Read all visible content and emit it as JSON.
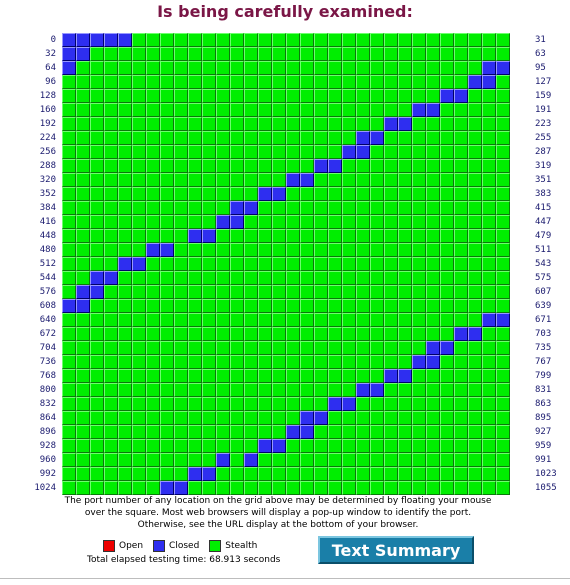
{
  "heading": "Is being carefully examined:",
  "grid": {
    "columns": 32,
    "rows": 33,
    "row_start_labels": [
      "0",
      "32",
      "64",
      "96",
      "128",
      "160",
      "192",
      "224",
      "256",
      "288",
      "320",
      "352",
      "384",
      "416",
      "448",
      "480",
      "512",
      "544",
      "576",
      "608",
      "640",
      "672",
      "704",
      "736",
      "768",
      "800",
      "832",
      "864",
      "896",
      "928",
      "960",
      "992",
      "1024"
    ],
    "row_end_labels": [
      "31",
      "63",
      "95",
      "127",
      "159",
      "191",
      "223",
      "255",
      "287",
      "319",
      "351",
      "383",
      "415",
      "447",
      "479",
      "511",
      "543",
      "575",
      "607",
      "639",
      "671",
      "703",
      "735",
      "767",
      "799",
      "831",
      "863",
      "895",
      "927",
      "959",
      "991",
      "1023",
      "1055"
    ],
    "closed_cells": [
      [
        0,
        0
      ],
      [
        0,
        1
      ],
      [
        0,
        2
      ],
      [
        0,
        3
      ],
      [
        0,
        4
      ],
      [
        1,
        0
      ],
      [
        1,
        1
      ],
      [
        2,
        0
      ],
      [
        2,
        30
      ],
      [
        2,
        31
      ],
      [
        3,
        29
      ],
      [
        3,
        30
      ],
      [
        4,
        27
      ],
      [
        4,
        28
      ],
      [
        5,
        25
      ],
      [
        5,
        26
      ],
      [
        6,
        23
      ],
      [
        6,
        24
      ],
      [
        7,
        21
      ],
      [
        7,
        22
      ],
      [
        8,
        20
      ],
      [
        8,
        21
      ],
      [
        9,
        18
      ],
      [
        9,
        19
      ],
      [
        10,
        16
      ],
      [
        10,
        17
      ],
      [
        11,
        14
      ],
      [
        11,
        15
      ],
      [
        12,
        12
      ],
      [
        12,
        13
      ],
      [
        13,
        11
      ],
      [
        13,
        12
      ],
      [
        14,
        9
      ],
      [
        14,
        10
      ],
      [
        15,
        6
      ],
      [
        15,
        7
      ],
      [
        16,
        4
      ],
      [
        16,
        5
      ],
      [
        17,
        2
      ],
      [
        17,
        3
      ],
      [
        18,
        1
      ],
      [
        18,
        2
      ],
      [
        19,
        0
      ],
      [
        19,
        1
      ],
      [
        20,
        30
      ],
      [
        20,
        31
      ],
      [
        21,
        28
      ],
      [
        21,
        29
      ],
      [
        22,
        26
      ],
      [
        22,
        27
      ],
      [
        23,
        25
      ],
      [
        23,
        26
      ],
      [
        24,
        23
      ],
      [
        24,
        24
      ],
      [
        25,
        21
      ],
      [
        25,
        22
      ],
      [
        26,
        19
      ],
      [
        26,
        20
      ],
      [
        27,
        17
      ],
      [
        27,
        18
      ],
      [
        28,
        16
      ],
      [
        28,
        17
      ],
      [
        29,
        14
      ],
      [
        29,
        15
      ],
      [
        30,
        11
      ],
      [
        30,
        13
      ],
      [
        31,
        9
      ],
      [
        31,
        10
      ],
      [
        32,
        7
      ],
      [
        32,
        8
      ]
    ]
  },
  "note": "The port number of any location on the grid above may be determined by floating your mouse over the square. Most web browsers will display a pop-up window to identify the port. Otherwise, see the URL display at the bottom of your browser.",
  "legend": [
    {
      "label": "Open",
      "color": "#ee0000"
    },
    {
      "label": "Closed",
      "color": "#2e2ef0"
    },
    {
      "label": "Stealth",
      "color": "#00ee00"
    }
  ],
  "elapsed": "Total elapsed testing time: 68.913 seconds",
  "text_summary_button": "Text Summary",
  "colors": {
    "heading": "#7a1646",
    "stealth": "#00ee00",
    "closed": "#2e2ef0",
    "open": "#ee0000",
    "button": "#1a7fa8"
  }
}
